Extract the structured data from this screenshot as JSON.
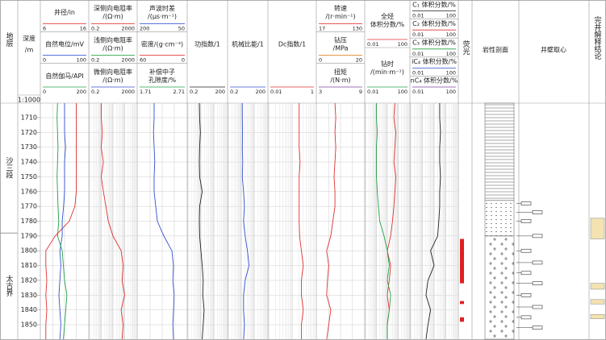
{
  "chart_data": {
    "type": "well_log",
    "scale_label": "1:1000",
    "columns": {
      "formation": "地层",
      "depth": [
        "深度",
        "/m"
      ],
      "fluorescence": "荧光",
      "lithology": "岩性剖面",
      "core": "井壁取心",
      "conclusion": "完井解释结论"
    },
    "depths": [
      1700,
      1710,
      1720,
      1730,
      1740,
      1750,
      1760,
      1770,
      1780,
      1790,
      1800,
      1810,
      1820,
      1830,
      1840,
      1850,
      1860
    ],
    "ylim": [
      1700,
      1860
    ],
    "yticks": [
      1710,
      1720,
      1730,
      1740,
      1750,
      1760,
      1770,
      1780,
      1790,
      1800,
      1810,
      1820,
      1830,
      1840,
      1850
    ],
    "formations": [
      "沙三段",
      "太古界"
    ],
    "formation_boundary": 1788,
    "tracks": [
      {
        "log": false,
        "curves": [
          {
            "label": [
              "井径/in"
            ],
            "range": [
              6,
              16
            ],
            "color": "#e03030",
            "values": [
              13.5,
              13.5,
              13.5,
              13.5,
              13.5,
              13.5,
              13.5,
              13.2,
              12,
              9,
              7,
              7,
              7.2,
              7,
              7.2,
              7,
              7
            ]
          },
          {
            "label": [
              "自然电位/mV"
            ],
            "range": [
              0,
              100
            ],
            "color": "#3050d0",
            "values": [
              50,
              50,
              50,
              52,
              50,
              50,
              50,
              48,
              45,
              45,
              40,
              42,
              40,
              38,
              40,
              42,
              40
            ]
          },
          {
            "label": [
              "自然伽马/API"
            ],
            "range": [
              0,
              200
            ],
            "color": "#20a040",
            "values": [
              70,
              68,
              70,
              72,
              70,
              68,
              70,
              72,
              75,
              70,
              90,
              95,
              100,
              110,
              105,
              100,
              95
            ]
          }
        ]
      },
      {
        "log": true,
        "curves": [
          {
            "label": [
              "深侧向电阻率",
              "/(Ω·m)"
            ],
            "range": [
              0.2,
              2000
            ],
            "color": "#e03030",
            "values": [
              2,
              2,
              2.5,
              2,
              3,
              2,
              3,
              5,
              8,
              20,
              100,
              150,
              120,
              200,
              100,
              150,
              120
            ]
          },
          {
            "label": [
              "浅侧向电阻率",
              "/(Ω·m)"
            ],
            "range": [
              0.2,
              2000
            ],
            "color": "#20a040"
          },
          {
            "label": [
              "微侧向电阻率",
              "/(Ω·m)"
            ],
            "range": [
              0.2,
              2000
            ],
            "color": "#3050d0"
          }
        ]
      },
      {
        "log": false,
        "curves": [
          {
            "label": [
              "声波时差",
              "/(μs·m⁻¹)"
            ],
            "range": [
              200,
              50
            ],
            "color": "#3050d0",
            "values": [
              150,
              150,
              152,
              150,
              148,
              150,
              150,
              145,
              140,
              120,
              95,
              90,
              92,
              88,
              90,
              92,
              90
            ]
          },
          {
            "label": [
              "密度/(g·cm⁻³)"
            ],
            "range": [
              60,
              0
            ],
            "color": "#e03030"
          },
          {
            "label": [
              "补偿中子",
              "孔隙度/%"
            ],
            "range": [
              1.71,
              2.71
            ],
            "color": "#20a040"
          }
        ]
      },
      {
        "log": true,
        "curves": [
          {
            "label": [
              "功指数/1"
            ],
            "range": [
              0.2,
              200
            ],
            "color": "#222222",
            "values": [
              1.5,
              1.6,
              1.8,
              1.6,
              1.5,
              1.6,
              2.5,
              1.6,
              1.5,
              1.6,
              2,
              2.5,
              3,
              2.8,
              3.5,
              3,
              2.5
            ]
          }
        ]
      },
      {
        "log": true,
        "curves": [
          {
            "label": [
              "机械比能/1"
            ],
            "range": [
              0.2,
              200
            ],
            "color": "#3050d0",
            "values": [
              2.4,
              2.4,
              2.5,
              2.4,
              2.6,
              2.4,
              3,
              3.5,
              3,
              4,
              6,
              8,
              4,
              3,
              3,
              3.5,
              3
            ]
          }
        ]
      },
      {
        "log": true,
        "curves": [
          {
            "label": [
              "Dc指数/1"
            ],
            "range": [
              0.01,
              1
            ],
            "color": "#e03030",
            "values": [
              0.2,
              0.2,
              0.2,
              0.2,
              0.22,
              0.2,
              0.2,
              0.2,
              0.2,
              0.21,
              0.25,
              0.3,
              0.25,
              0.25,
              0.3,
              0.25,
              0.25
            ]
          }
        ]
      },
      {
        "log": false,
        "curves": [
          {
            "label": [
              "转速",
              "/(r·min⁻¹)"
            ],
            "range": [
              17,
              130
            ],
            "color": "#e03030",
            "values": [
              60,
              62,
              60,
              62,
              60,
              58,
              60,
              60,
              55,
              50,
              40,
              45,
              42,
              40,
              50,
              45,
              40
            ]
          },
          {
            "label": [
              "钻压",
              "/MPa"
            ],
            "range": [
              0,
              20
            ],
            "color": "#e08020"
          },
          {
            "label": [
              "扭矩",
              "/(N·m)"
            ],
            "range": [
              3,
              9
            ],
            "color": "#8040a0"
          }
        ]
      },
      {
        "log": true,
        "curves": [
          {
            "label": [
              "全烃",
              "体积分数/%"
            ],
            "range": [
              0.01,
              100
            ],
            "color": "#e03030",
            "values": [
              5,
              4,
              6,
              5,
              4,
              6,
              5,
              4,
              3,
              2,
              1,
              2,
              1.5,
              1,
              1.5,
              1,
              1
            ]
          },
          {
            "label": [
              "钻时",
              "/(min·m⁻¹)"
            ],
            "range": [
              0.01,
              100
            ],
            "color": "#20a040",
            "values": [
              0.1,
              0.1,
              0.12,
              0.1,
              0.1,
              0.1,
              0.12,
              0.15,
              0.2,
              0.5,
              1,
              1.5,
              1,
              2,
              1.5,
              1,
              1
            ]
          }
        ]
      },
      {
        "log": true,
        "curves": [
          {
            "label": [
              "C₁ 体积分数/%"
            ],
            "range": [
              0.01,
              100
            ],
            "color": "#222222",
            "values": [
              3,
              3,
              3.5,
              3,
              3,
              3.5,
              3,
              3,
              2.5,
              2,
              0.5,
              1,
              0.3,
              0.2,
              0.5,
              0.3,
              0.2
            ]
          },
          {
            "label": [
              "C₂ 体积分数/%"
            ],
            "range": [
              0.01,
              100
            ],
            "color": "#e03030"
          },
          {
            "label": [
              "C₃ 体积分数/%"
            ],
            "range": [
              0.01,
              100
            ],
            "color": "#20a040"
          },
          {
            "label": [
              "iC₄ 体积分数/%"
            ],
            "range": [
              0.01,
              100
            ],
            "color": "#3050d0"
          },
          {
            "label": [
              "nC₄ 体积分数/%"
            ],
            "range": [
              0.01,
              100
            ],
            "color": "#8040a0"
          }
        ]
      }
    ],
    "fluorescence": [
      {
        "top": 1792,
        "bottom": 1822
      },
      {
        "top": 1834,
        "bottom": 1836
      },
      {
        "top": 1845,
        "bottom": 1848
      }
    ],
    "lithology": [
      {
        "top": 1700,
        "bottom": 1766,
        "pattern": "mudstone"
      },
      {
        "top": 1766,
        "bottom": 1790,
        "pattern": "sandstone"
      },
      {
        "top": 1790,
        "bottom": 1860,
        "pattern": "granite"
      }
    ],
    "cores": [
      1768,
      1774,
      1780,
      1790,
      1800,
      1808,
      1815,
      1822,
      1830,
      1838,
      1845,
      1852
    ],
    "conclusions": [
      {
        "top": 1778,
        "bottom": 1792
      },
      {
        "top": 1822,
        "bottom": 1826
      },
      {
        "top": 1833,
        "bottom": 1836
      },
      {
        "top": 1843,
        "bottom": 1846
      }
    ]
  }
}
